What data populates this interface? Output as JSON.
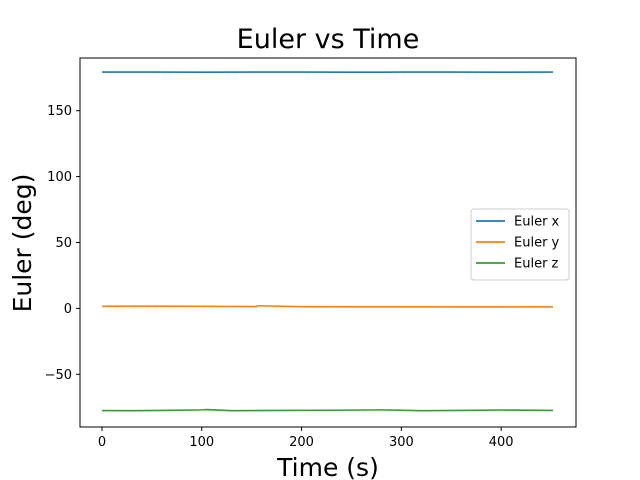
{
  "chart_data": {
    "type": "line",
    "title": "Euler vs Time",
    "xlabel": "Time (s)",
    "ylabel": "Euler (deg)",
    "xlim": [
      -22,
      475
    ],
    "ylim": [
      -90,
      190
    ],
    "xticks": [
      0,
      100,
      200,
      300,
      400
    ],
    "yticks": [
      -50,
      0,
      50,
      100,
      150
    ],
    "ytick_labels": [
      "−50",
      "0",
      "50",
      "100",
      "150"
    ],
    "grid": false,
    "legend_position": "center-right",
    "series": [
      {
        "name": "Euler x",
        "color": "#1f77b4",
        "x": [
          0,
          50,
          100,
          150,
          200,
          250,
          300,
          350,
          400,
          452
        ],
        "y": [
          179.3,
          179.3,
          179.2,
          179.3,
          179.3,
          179.2,
          179.3,
          179.3,
          179.2,
          179.3
        ]
      },
      {
        "name": "Euler y",
        "color": "#ff7f0e",
        "x": [
          0,
          50,
          100,
          155,
          156,
          200,
          250,
          300,
          350,
          400,
          452
        ],
        "y": [
          1.6,
          1.7,
          1.6,
          1.4,
          2.0,
          1.3,
          1.2,
          1.2,
          1.1,
          1.1,
          1.2
        ]
      },
      {
        "name": "Euler z",
        "color": "#2ca02c",
        "x": [
          0,
          30,
          60,
          100,
          105,
          130,
          180,
          230,
          280,
          320,
          360,
          400,
          452
        ],
        "y": [
          -77.5,
          -77.6,
          -77.4,
          -77.0,
          -76.8,
          -77.6,
          -77.4,
          -77.3,
          -77.0,
          -77.6,
          -77.4,
          -77.1,
          -77.4
        ]
      }
    ]
  }
}
